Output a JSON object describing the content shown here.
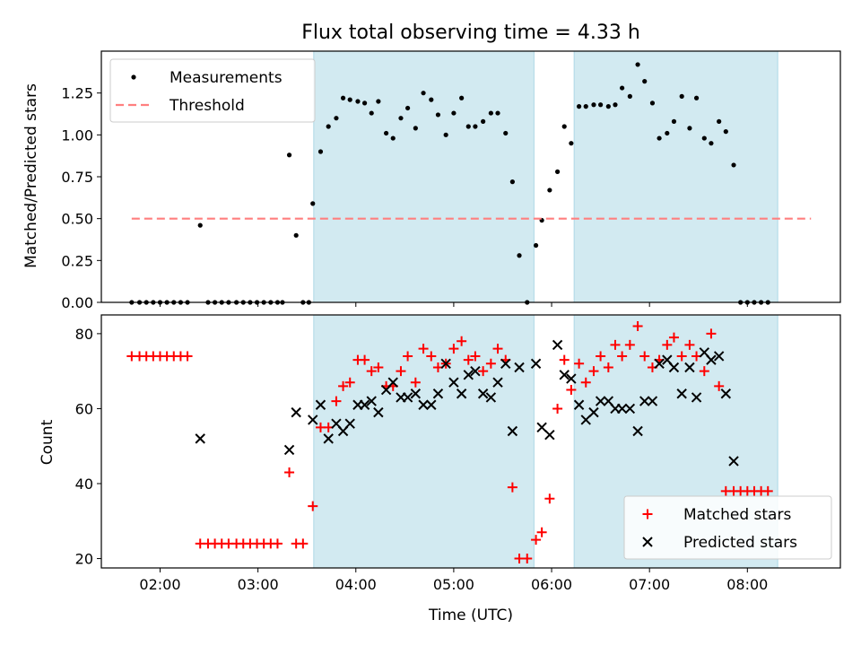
{
  "figure": {
    "title": "Flux total observing time = 4.33 h",
    "xlabel": "Time (UTC)",
    "x_ticks": [
      "02:00",
      "03:00",
      "04:00",
      "05:00",
      "06:00",
      "07:00",
      "08:00"
    ]
  },
  "chart_data": [
    {
      "type": "scatter",
      "title": "Flux total observing time = 4.33 h",
      "xlabel": "",
      "ylabel": "Matched/Predicted stars",
      "x_unit": "hours UTC",
      "xlim": [
        1.4,
        8.95
      ],
      "ylim": [
        0,
        1.5
      ],
      "y_ticks": [
        "0.00",
        "0.25",
        "0.50",
        "0.75",
        "1.00",
        "1.25"
      ],
      "grid": false,
      "legend_position": "top-left",
      "legend": [
        "Measurements",
        "Threshold"
      ],
      "shaded_intervals": [
        [
          3.57,
          5.82
        ],
        [
          6.23,
          8.31
        ]
      ],
      "shade_color": "#add8e6",
      "series": [
        {
          "name": "Measurements",
          "marker": "dot",
          "color": "#000000",
          "points": [
            [
              1.71,
              0
            ],
            [
              1.79,
              0
            ],
            [
              1.86,
              0
            ],
            [
              1.93,
              0
            ],
            [
              2.0,
              0
            ],
            [
              2.07,
              0
            ],
            [
              2.14,
              0
            ],
            [
              2.21,
              0
            ],
            [
              2.28,
              0
            ],
            [
              2.41,
              0.46
            ],
            [
              2.49,
              0
            ],
            [
              2.56,
              0
            ],
            [
              2.63,
              0
            ],
            [
              2.7,
              0
            ],
            [
              2.78,
              0
            ],
            [
              2.85,
              0
            ],
            [
              2.92,
              0
            ],
            [
              2.99,
              0
            ],
            [
              3.06,
              0
            ],
            [
              3.13,
              0
            ],
            [
              3.2,
              0
            ],
            [
              3.25,
              0
            ],
            [
              3.32,
              0.88
            ],
            [
              3.39,
              0.4
            ],
            [
              3.46,
              0
            ],
            [
              3.52,
              0
            ],
            [
              3.56,
              0.59
            ],
            [
              3.64,
              0.9
            ],
            [
              3.72,
              1.05
            ],
            [
              3.8,
              1.1
            ],
            [
              3.87,
              1.22
            ],
            [
              3.94,
              1.21
            ],
            [
              4.02,
              1.2
            ],
            [
              4.09,
              1.19
            ],
            [
              4.16,
              1.13
            ],
            [
              4.23,
              1.2
            ],
            [
              4.31,
              1.01
            ],
            [
              4.38,
              0.98
            ],
            [
              4.46,
              1.1
            ],
            [
              4.53,
              1.16
            ],
            [
              4.61,
              1.04
            ],
            [
              4.69,
              1.25
            ],
            [
              4.77,
              1.21
            ],
            [
              4.84,
              1.12
            ],
            [
              4.92,
              1.0
            ],
            [
              5.0,
              1.13
            ],
            [
              5.08,
              1.22
            ],
            [
              5.15,
              1.05
            ],
            [
              5.22,
              1.05
            ],
            [
              5.3,
              1.08
            ],
            [
              5.38,
              1.13
            ],
            [
              5.45,
              1.13
            ],
            [
              5.53,
              1.01
            ],
            [
              5.6,
              0.72
            ],
            [
              5.67,
              0.28
            ],
            [
              5.75,
              0
            ],
            [
              5.84,
              0.34
            ],
            [
              5.9,
              0.49
            ],
            [
              5.98,
              0.67
            ],
            [
              6.06,
              0.78
            ],
            [
              6.13,
              1.05
            ],
            [
              6.2,
              0.95
            ],
            [
              6.28,
              1.17
            ],
            [
              6.35,
              1.17
            ],
            [
              6.43,
              1.18
            ],
            [
              6.5,
              1.18
            ],
            [
              6.58,
              1.17
            ],
            [
              6.65,
              1.18
            ],
            [
              6.72,
              1.28
            ],
            [
              6.8,
              1.23
            ],
            [
              6.88,
              1.42
            ],
            [
              6.95,
              1.32
            ],
            [
              7.03,
              1.19
            ],
            [
              7.1,
              0.98
            ],
            [
              7.18,
              1.01
            ],
            [
              7.25,
              1.08
            ],
            [
              7.33,
              1.23
            ],
            [
              7.41,
              1.04
            ],
            [
              7.48,
              1.22
            ],
            [
              7.56,
              0.98
            ],
            [
              7.63,
              0.95
            ],
            [
              7.71,
              1.08
            ],
            [
              7.78,
              1.02
            ],
            [
              7.86,
              0.82
            ],
            [
              7.93,
              0
            ],
            [
              8.0,
              0
            ],
            [
              8.07,
              0
            ],
            [
              8.14,
              0
            ],
            [
              8.21,
              0
            ]
          ]
        },
        {
          "name": "Threshold",
          "marker": "dashed-line",
          "color": "#ff7f7f",
          "points": [
            [
              1.71,
              0.5
            ],
            [
              8.65,
              0.5
            ]
          ]
        }
      ]
    },
    {
      "type": "scatter",
      "title": "",
      "xlabel": "Time (UTC)",
      "ylabel": "Count",
      "x_unit": "hours UTC",
      "xlim": [
        1.4,
        8.95
      ],
      "ylim": [
        17.5,
        85
      ],
      "y_ticks": [
        "20",
        "40",
        "60",
        "80"
      ],
      "grid": false,
      "legend_position": "bottom-right",
      "legend": [
        "Matched stars",
        "Predicted stars"
      ],
      "shaded_intervals": [
        [
          3.57,
          5.82
        ],
        [
          6.23,
          8.31
        ]
      ],
      "shade_color": "#add8e6",
      "series": [
        {
          "name": "Matched stars",
          "marker": "plus",
          "color": "#ff0000",
          "points": [
            [
              1.71,
              74
            ],
            [
              1.79,
              74
            ],
            [
              1.86,
              74
            ],
            [
              1.93,
              74
            ],
            [
              2.0,
              74
            ],
            [
              2.07,
              74
            ],
            [
              2.14,
              74
            ],
            [
              2.21,
              74
            ],
            [
              2.28,
              74
            ],
            [
              2.41,
              24
            ],
            [
              2.49,
              24
            ],
            [
              2.56,
              24
            ],
            [
              2.63,
              24
            ],
            [
              2.7,
              24
            ],
            [
              2.78,
              24
            ],
            [
              2.85,
              24
            ],
            [
              2.92,
              24
            ],
            [
              2.99,
              24
            ],
            [
              3.06,
              24
            ],
            [
              3.13,
              24
            ],
            [
              3.2,
              24
            ],
            [
              3.32,
              43
            ],
            [
              3.39,
              24
            ],
            [
              3.46,
              24
            ],
            [
              3.56,
              34
            ],
            [
              3.64,
              55
            ],
            [
              3.72,
              55
            ],
            [
              3.8,
              62
            ],
            [
              3.87,
              66
            ],
            [
              3.94,
              67
            ],
            [
              4.02,
              73
            ],
            [
              4.09,
              73
            ],
            [
              4.16,
              70
            ],
            [
              4.23,
              71
            ],
            [
              4.31,
              66
            ],
            [
              4.38,
              66
            ],
            [
              4.46,
              70
            ],
            [
              4.53,
              74
            ],
            [
              4.61,
              67
            ],
            [
              4.69,
              76
            ],
            [
              4.77,
              74
            ],
            [
              4.84,
              71
            ],
            [
              4.92,
              72
            ],
            [
              5.0,
              76
            ],
            [
              5.08,
              78
            ],
            [
              5.15,
              73
            ],
            [
              5.22,
              74
            ],
            [
              5.3,
              70
            ],
            [
              5.38,
              72
            ],
            [
              5.45,
              76
            ],
            [
              5.53,
              73
            ],
            [
              5.6,
              39
            ],
            [
              5.67,
              20
            ],
            [
              5.75,
              20
            ],
            [
              5.84,
              25
            ],
            [
              5.9,
              27
            ],
            [
              5.98,
              36
            ],
            [
              6.06,
              60
            ],
            [
              6.13,
              73
            ],
            [
              6.2,
              65
            ],
            [
              6.28,
              72
            ],
            [
              6.35,
              67
            ],
            [
              6.43,
              70
            ],
            [
              6.5,
              74
            ],
            [
              6.58,
              71
            ],
            [
              6.65,
              77
            ],
            [
              6.72,
              74
            ],
            [
              6.8,
              77
            ],
            [
              6.88,
              82
            ],
            [
              6.95,
              74
            ],
            [
              7.03,
              71
            ],
            [
              7.1,
              73
            ],
            [
              7.18,
              77
            ],
            [
              7.25,
              79
            ],
            [
              7.33,
              74
            ],
            [
              7.41,
              77
            ],
            [
              7.48,
              74
            ],
            [
              7.56,
              70
            ],
            [
              7.63,
              80
            ],
            [
              7.71,
              66
            ],
            [
              7.78,
              38
            ],
            [
              7.86,
              38
            ],
            [
              7.93,
              38
            ],
            [
              8.0,
              38
            ],
            [
              8.07,
              38
            ],
            [
              8.14,
              38
            ],
            [
              8.21,
              38
            ]
          ]
        },
        {
          "name": "Predicted stars",
          "marker": "x",
          "color": "#000000",
          "points": [
            [
              2.41,
              52
            ],
            [
              3.32,
              49
            ],
            [
              3.39,
              59
            ],
            [
              3.56,
              57
            ],
            [
              3.64,
              61
            ],
            [
              3.72,
              52
            ],
            [
              3.8,
              56
            ],
            [
              3.87,
              54
            ],
            [
              3.94,
              56
            ],
            [
              4.02,
              61
            ],
            [
              4.09,
              61
            ],
            [
              4.16,
              62
            ],
            [
              4.23,
              59
            ],
            [
              4.31,
              65
            ],
            [
              4.38,
              67
            ],
            [
              4.46,
              63
            ],
            [
              4.53,
              63
            ],
            [
              4.61,
              64
            ],
            [
              4.69,
              61
            ],
            [
              4.77,
              61
            ],
            [
              4.84,
              64
            ],
            [
              4.92,
              72
            ],
            [
              5.0,
              67
            ],
            [
              5.08,
              64
            ],
            [
              5.15,
              69
            ],
            [
              5.22,
              70
            ],
            [
              5.3,
              64
            ],
            [
              5.38,
              63
            ],
            [
              5.45,
              67
            ],
            [
              5.53,
              72
            ],
            [
              5.6,
              54
            ],
            [
              5.67,
              71
            ],
            [
              5.84,
              72
            ],
            [
              5.9,
              55
            ],
            [
              5.98,
              53
            ],
            [
              6.06,
              77
            ],
            [
              6.13,
              69
            ],
            [
              6.2,
              68
            ],
            [
              6.28,
              61
            ],
            [
              6.35,
              57
            ],
            [
              6.43,
              59
            ],
            [
              6.5,
              62
            ],
            [
              6.58,
              62
            ],
            [
              6.65,
              60
            ],
            [
              6.72,
              60
            ],
            [
              6.8,
              60
            ],
            [
              6.88,
              54
            ],
            [
              6.95,
              62
            ],
            [
              7.03,
              62
            ],
            [
              7.1,
              72
            ],
            [
              7.18,
              73
            ],
            [
              7.25,
              71
            ],
            [
              7.33,
              64
            ],
            [
              7.41,
              71
            ],
            [
              7.48,
              63
            ],
            [
              7.56,
              75
            ],
            [
              7.63,
              73
            ],
            [
              7.71,
              74
            ],
            [
              7.78,
              64
            ],
            [
              7.86,
              46
            ]
          ]
        }
      ]
    }
  ]
}
